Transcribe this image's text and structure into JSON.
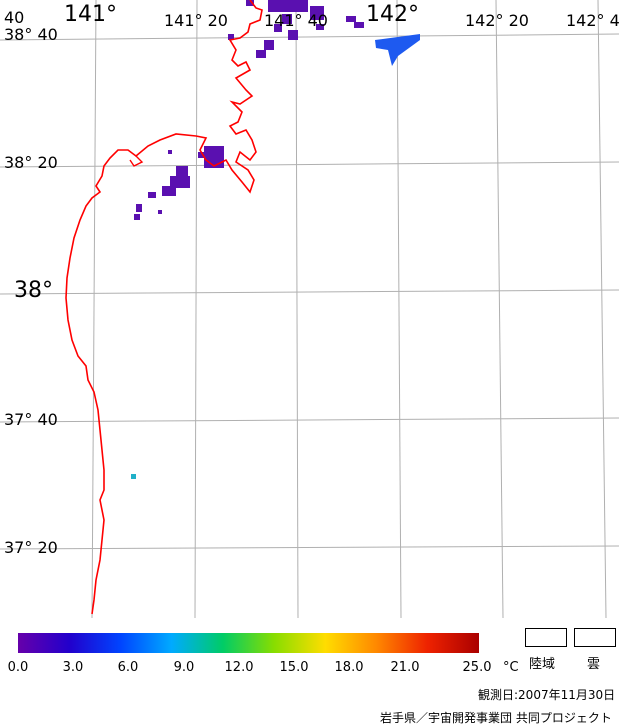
{
  "map": {
    "lon_labels": [
      "40",
      "141°",
      "141° 20",
      "141° 40",
      "142°",
      "142° 20",
      "142° 4"
    ],
    "lat_labels": [
      "38° 40",
      "38° 20",
      "38°",
      "37° 40",
      "37° 20"
    ],
    "colors": {
      "coastline": "#ff0000",
      "grid": "#b0b0b0",
      "sst_low": "#5a10b0",
      "sst_blue": "#1e5af0",
      "sst_cyan": "#20b0c8"
    }
  },
  "legend": {
    "scale_labels": [
      "0.0",
      "3.0",
      "6.0",
      "9.0",
      "12.0",
      "15.0",
      "18.0",
      "21.0",
      "25.0"
    ],
    "unit": "°C",
    "land_label": "陸域",
    "cloud_label": "雲",
    "colors": [
      "#6600aa",
      "#2200cc",
      "#0044ff",
      "#00aaff",
      "#00cc66",
      "#88dd00",
      "#ffdd00",
      "#ff8800",
      "#ee2200",
      "#aa0000"
    ]
  },
  "footer": {
    "observation_date": "観測日:2007年11月30日",
    "credit": "岩手県／宇宙開発事業団 共同プロジェクト"
  }
}
